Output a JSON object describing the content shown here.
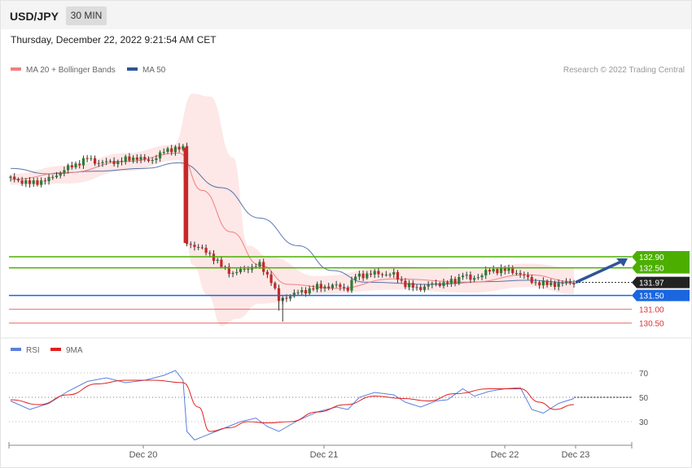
{
  "header": {
    "symbol": "USD/JPY",
    "timeframe": "30 MIN"
  },
  "timestamp": "Thursday, December 22, 2022 9:21:54 AM CET",
  "legend": {
    "ma20": {
      "label": "MA 20 + Bollinger Bands",
      "color": "#f08080"
    },
    "ma50": {
      "label": "MA 50",
      "color": "#2f5597"
    }
  },
  "credit": "Research © 2022 Trading Central",
  "rsi_legend": {
    "rsi": {
      "label": "RSI",
      "color": "#5b7fdc"
    },
    "ma9": {
      "label": "9MA",
      "color": "#e02020"
    }
  },
  "chart_data": {
    "type": "candlestick",
    "symbol": "USD/JPY",
    "interval": "30 MIN",
    "price_range": [
      130.2,
      137.0
    ],
    "x_ticks": [
      "Dec 20",
      "Dec 21",
      "Dec 22",
      "Dec 23"
    ],
    "current_price": 131.97,
    "levels": [
      {
        "price": 132.9,
        "label": "132.90",
        "kind": "resistance",
        "color": "#4caf00"
      },
      {
        "price": 132.5,
        "label": "132.50",
        "kind": "resistance",
        "color": "#4caf00"
      },
      {
        "price": 131.97,
        "label": "131.97",
        "kind": "last",
        "color": "#222222"
      },
      {
        "price": 131.5,
        "label": "131.50",
        "kind": "pivot",
        "color": "#1a66e0"
      },
      {
        "price": 131.0,
        "label": "131.00",
        "kind": "support",
        "color": "#e03030"
      },
      {
        "price": 130.5,
        "label": "130.50",
        "kind": "support",
        "color": "#e03030"
      }
    ],
    "forecast": {
      "from": 131.97,
      "to": 132.9,
      "direction": "up"
    },
    "close_path": [
      {
        "x": 0,
        "c": 135.75
      },
      {
        "x": 10,
        "c": 135.55
      },
      {
        "x": 20,
        "c": 135.7
      },
      {
        "x": 28,
        "c": 136.05
      },
      {
        "x": 40,
        "c": 136.45
      },
      {
        "x": 46,
        "c": 136.3
      },
      {
        "x": 56,
        "c": 136.35
      },
      {
        "x": 66,
        "c": 136.5
      },
      {
        "x": 72,
        "c": 136.35
      },
      {
        "x": 80,
        "c": 136.7
      },
      {
        "x": 86,
        "c": 136.85
      },
      {
        "x": 90,
        "c": 136.8
      },
      {
        "x": 92,
        "c": 133.4
      },
      {
        "x": 96,
        "c": 133.3
      },
      {
        "x": 104,
        "c": 133.0
      },
      {
        "x": 110,
        "c": 132.55
      },
      {
        "x": 116,
        "c": 132.3
      },
      {
        "x": 124,
        "c": 132.5
      },
      {
        "x": 130,
        "c": 132.6
      },
      {
        "x": 136,
        "c": 132.05
      },
      {
        "x": 140,
        "c": 131.3
      },
      {
        "x": 144,
        "c": 131.45
      },
      {
        "x": 150,
        "c": 131.6
      },
      {
        "x": 160,
        "c": 131.8
      },
      {
        "x": 170,
        "c": 131.85
      },
      {
        "x": 176,
        "c": 131.75
      },
      {
        "x": 180,
        "c": 132.2
      },
      {
        "x": 190,
        "c": 132.3
      },
      {
        "x": 200,
        "c": 132.25
      },
      {
        "x": 206,
        "c": 131.9
      },
      {
        "x": 212,
        "c": 131.75
      },
      {
        "x": 220,
        "c": 131.9
      },
      {
        "x": 232,
        "c": 132.0
      },
      {
        "x": 236,
        "c": 132.3
      },
      {
        "x": 240,
        "c": 132.05
      },
      {
        "x": 248,
        "c": 132.35
      },
      {
        "x": 256,
        "c": 132.45
      },
      {
        "x": 266,
        "c": 132.3
      },
      {
        "x": 272,
        "c": 132.0
      },
      {
        "x": 280,
        "c": 131.9
      },
      {
        "x": 290,
        "c": 131.95
      },
      {
        "x": 294,
        "c": 131.97
      }
    ],
    "ma20": [
      {
        "x": 0,
        "v": 135.7
      },
      {
        "x": 30,
        "v": 135.95
      },
      {
        "x": 60,
        "v": 136.35
      },
      {
        "x": 88,
        "v": 136.65
      },
      {
        "x": 100,
        "v": 135.3
      },
      {
        "x": 115,
        "v": 133.8
      },
      {
        "x": 130,
        "v": 132.6
      },
      {
        "x": 145,
        "v": 131.9
      },
      {
        "x": 170,
        "v": 131.75
      },
      {
        "x": 200,
        "v": 132.1
      },
      {
        "x": 240,
        "v": 131.98
      },
      {
        "x": 270,
        "v": 132.25
      },
      {
        "x": 294,
        "v": 132.0
      }
    ],
    "bb_upper": [
      {
        "x": 0,
        "v": 135.9
      },
      {
        "x": 30,
        "v": 136.2
      },
      {
        "x": 60,
        "v": 136.65
      },
      {
        "x": 85,
        "v": 136.95
      },
      {
        "x": 95,
        "v": 138.8
      },
      {
        "x": 104,
        "v": 138.7
      },
      {
        "x": 116,
        "v": 136.5
      },
      {
        "x": 124,
        "v": 133.3
      },
      {
        "x": 135,
        "v": 132.9
      },
      {
        "x": 160,
        "v": 132.2
      },
      {
        "x": 200,
        "v": 132.55
      },
      {
        "x": 240,
        "v": 132.45
      },
      {
        "x": 270,
        "v": 132.65
      },
      {
        "x": 294,
        "v": 132.5
      }
    ],
    "bb_lower": [
      {
        "x": 294,
        "v": 131.55
      },
      {
        "x": 270,
        "v": 131.8
      },
      {
        "x": 240,
        "v": 131.6
      },
      {
        "x": 200,
        "v": 131.7
      },
      {
        "x": 160,
        "v": 131.55
      },
      {
        "x": 130,
        "v": 131.2
      },
      {
        "x": 118,
        "v": 130.65
      },
      {
        "x": 110,
        "v": 130.4
      },
      {
        "x": 103,
        "v": 131.5
      },
      {
        "x": 95,
        "v": 132.6
      },
      {
        "x": 88,
        "v": 136.4
      },
      {
        "x": 60,
        "v": 136.0
      },
      {
        "x": 30,
        "v": 135.55
      },
      {
        "x": 0,
        "v": 135.5
      }
    ],
    "ma50": [
      {
        "x": 0,
        "v": 136.1
      },
      {
        "x": 20,
        "v": 135.9
      },
      {
        "x": 45,
        "v": 136.0
      },
      {
        "x": 70,
        "v": 136.1
      },
      {
        "x": 88,
        "v": 136.3
      },
      {
        "x": 110,
        "v": 135.4
      },
      {
        "x": 130,
        "v": 134.3
      },
      {
        "x": 150,
        "v": 133.3
      },
      {
        "x": 168,
        "v": 132.4
      },
      {
        "x": 185,
        "v": 131.98
      },
      {
        "x": 220,
        "v": 131.9
      },
      {
        "x": 250,
        "v": 132.0
      },
      {
        "x": 270,
        "v": 132.05
      },
      {
        "x": 294,
        "v": 131.95
      }
    ],
    "rsi": {
      "levels": [
        70,
        50,
        30
      ],
      "range": [
        10,
        80
      ],
      "rsi": [
        {
          "x": 0,
          "v": 47
        },
        {
          "x": 10,
          "v": 40
        },
        {
          "x": 20,
          "v": 45
        },
        {
          "x": 30,
          "v": 55
        },
        {
          "x": 40,
          "v": 63
        },
        {
          "x": 50,
          "v": 66
        },
        {
          "x": 60,
          "v": 62
        },
        {
          "x": 70,
          "v": 64
        },
        {
          "x": 80,
          "v": 68
        },
        {
          "x": 86,
          "v": 72
        },
        {
          "x": 90,
          "v": 64
        },
        {
          "x": 92,
          "v": 22
        },
        {
          "x": 96,
          "v": 15
        },
        {
          "x": 104,
          "v": 20
        },
        {
          "x": 112,
          "v": 25
        },
        {
          "x": 120,
          "v": 30
        },
        {
          "x": 128,
          "v": 33
        },
        {
          "x": 134,
          "v": 26
        },
        {
          "x": 140,
          "v": 22
        },
        {
          "x": 150,
          "v": 31
        },
        {
          "x": 160,
          "v": 38
        },
        {
          "x": 170,
          "v": 42
        },
        {
          "x": 176,
          "v": 40
        },
        {
          "x": 182,
          "v": 50
        },
        {
          "x": 190,
          "v": 54
        },
        {
          "x": 200,
          "v": 52
        },
        {
          "x": 206,
          "v": 46
        },
        {
          "x": 214,
          "v": 42
        },
        {
          "x": 222,
          "v": 47
        },
        {
          "x": 228,
          "v": 48
        },
        {
          "x": 236,
          "v": 57
        },
        {
          "x": 242,
          "v": 51
        },
        {
          "x": 250,
          "v": 55
        },
        {
          "x": 258,
          "v": 57
        },
        {
          "x": 266,
          "v": 58
        },
        {
          "x": 272,
          "v": 40
        },
        {
          "x": 278,
          "v": 37
        },
        {
          "x": 286,
          "v": 45
        },
        {
          "x": 294,
          "v": 49
        }
      ],
      "ma9": [
        {
          "x": 0,
          "v": 48
        },
        {
          "x": 15,
          "v": 44
        },
        {
          "x": 30,
          "v": 52
        },
        {
          "x": 45,
          "v": 61
        },
        {
          "x": 60,
          "v": 64
        },
        {
          "x": 75,
          "v": 64
        },
        {
          "x": 90,
          "v": 62
        },
        {
          "x": 98,
          "v": 42
        },
        {
          "x": 104,
          "v": 22
        },
        {
          "x": 114,
          "v": 25
        },
        {
          "x": 124,
          "v": 30
        },
        {
          "x": 134,
          "v": 29
        },
        {
          "x": 146,
          "v": 30
        },
        {
          "x": 160,
          "v": 38
        },
        {
          "x": 175,
          "v": 44
        },
        {
          "x": 190,
          "v": 51
        },
        {
          "x": 205,
          "v": 49
        },
        {
          "x": 218,
          "v": 47
        },
        {
          "x": 232,
          "v": 53
        },
        {
          "x": 250,
          "v": 57
        },
        {
          "x": 266,
          "v": 57
        },
        {
          "x": 276,
          "v": 46
        },
        {
          "x": 284,
          "v": 40
        },
        {
          "x": 294,
          "v": 44
        }
      ]
    }
  }
}
